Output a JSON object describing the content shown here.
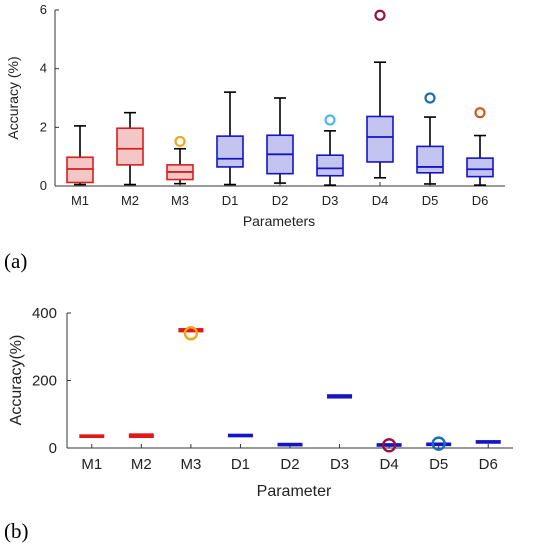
{
  "chart_data": [
    {
      "panel_label": "(a)",
      "type": "box",
      "xlabel": "Parameters",
      "ylabel": "Accuracy (%)",
      "ylim": [
        0,
        6
      ],
      "yticks": [
        "0",
        "2",
        "4",
        "6"
      ],
      "grid": false,
      "categories": [
        "M1",
        "M2",
        "M3",
        "D1",
        "D2",
        "D3",
        "D4",
        "D5",
        "D6"
      ],
      "boxes": [
        {
          "category": "M1",
          "min": 0.05,
          "q1": 0.12,
          "median": 0.58,
          "q3": 0.98,
          "max": 2.05,
          "outliers": [],
          "color": "#d42020"
        },
        {
          "category": "M2",
          "min": 0.05,
          "q1": 0.72,
          "median": 1.27,
          "q3": 1.97,
          "max": 2.5,
          "outliers": [],
          "color": "#d42020"
        },
        {
          "category": "M3",
          "min": 0.08,
          "q1": 0.22,
          "median": 0.48,
          "q3": 0.72,
          "max": 1.27,
          "outliers": [
            1.52
          ],
          "outlier_color": "#f0a818",
          "color": "#d42020"
        },
        {
          "category": "D1",
          "min": 0.05,
          "q1": 0.65,
          "median": 0.93,
          "q3": 1.7,
          "max": 3.2,
          "outliers": [],
          "color": "#1414c8"
        },
        {
          "category": "D2",
          "min": 0.1,
          "q1": 0.42,
          "median": 1.08,
          "q3": 1.73,
          "max": 3.0,
          "outliers": [],
          "color": "#1414c8"
        },
        {
          "category": "D3",
          "min": 0.03,
          "q1": 0.35,
          "median": 0.6,
          "q3": 1.05,
          "max": 1.88,
          "outliers": [
            2.25
          ],
          "outlier_color": "#4fb8ee",
          "color": "#1414c8"
        },
        {
          "category": "D4",
          "min": 0.28,
          "q1": 0.82,
          "median": 1.67,
          "q3": 2.37,
          "max": 4.22,
          "outliers": [
            5.82
          ],
          "outlier_color": "#9a0f3a",
          "color": "#1414c8"
        },
        {
          "category": "D5",
          "min": 0.07,
          "q1": 0.45,
          "median": 0.65,
          "q3": 1.35,
          "max": 2.35,
          "outliers": [
            3.0
          ],
          "outlier_color": "#1a6fb0",
          "color": "#1414c8"
        },
        {
          "category": "D6",
          "min": 0.03,
          "q1": 0.32,
          "median": 0.57,
          "q3": 0.95,
          "max": 1.72,
          "outliers": [
            2.5
          ],
          "outlier_color": "#d2571a",
          "color": "#1414c8"
        }
      ]
    },
    {
      "panel_label": "(b)",
      "type": "box",
      "xlabel": "Parameter",
      "ylabel": "Accuracy(%)",
      "ylim": [
        0,
        400
      ],
      "yticks": [
        "0",
        "200",
        "400"
      ],
      "grid": false,
      "categories": [
        "M1",
        "M2",
        "M3",
        "D1",
        "D2",
        "D3",
        "D4",
        "D5",
        "D6"
      ],
      "boxes": [
        {
          "category": "M1",
          "q1": 34,
          "median": 35,
          "q3": 36,
          "outliers": [],
          "color": "#e01818"
        },
        {
          "category": "M2",
          "q1": 34,
          "median": 36,
          "q3": 39,
          "outliers": [],
          "color": "#e01818"
        },
        {
          "category": "M3",
          "q1": 347,
          "median": 349,
          "q3": 351,
          "outliers": [
            340
          ],
          "outlier_color": "#f0a818",
          "color": "#e01818"
        },
        {
          "category": "D1",
          "q1": 36,
          "median": 37,
          "q3": 38,
          "outliers": [],
          "color": "#1414c8"
        },
        {
          "category": "D2",
          "q1": 9,
          "median": 10,
          "q3": 11,
          "outliers": [],
          "color": "#1414c8"
        },
        {
          "category": "D3",
          "q1": 151,
          "median": 153,
          "q3": 155,
          "outliers": [],
          "color": "#1414c8"
        },
        {
          "category": "D4",
          "q1": 8,
          "median": 9,
          "q3": 10,
          "outliers": [
            8
          ],
          "outlier_color": "#9a0f3a",
          "color": "#1414c8"
        },
        {
          "category": "D5",
          "q1": 10,
          "median": 11,
          "q3": 12,
          "outliers": [
            13
          ],
          "outlier_color": "#1a6fb0",
          "color": "#1414c8"
        },
        {
          "category": "D6",
          "q1": 17,
          "median": 18,
          "q3": 19,
          "outliers": [],
          "color": "#1414c8"
        }
      ]
    }
  ]
}
